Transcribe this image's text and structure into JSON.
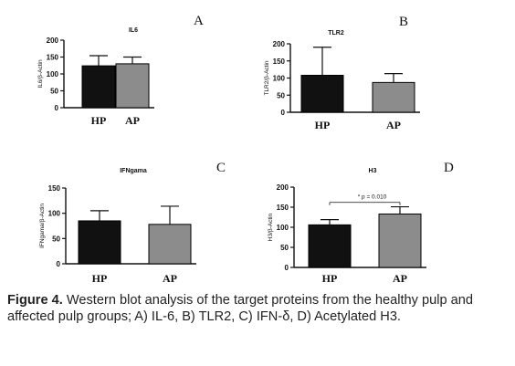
{
  "chart_data": [
    {
      "type": "bar",
      "panel_letter": "A",
      "title": "IL6",
      "ylabel": "IL6/β-Actin",
      "categories": [
        "HP",
        "AP"
      ],
      "values": [
        124,
        130
      ],
      "errors": [
        30,
        20
      ],
      "colors": [
        "#111111",
        "#8c8c8c"
      ],
      "ylim": [
        0,
        200
      ],
      "yticks": [
        "0",
        "50",
        "100",
        "150",
        "200"
      ],
      "annotation": ""
    },
    {
      "type": "bar",
      "panel_letter": "B",
      "title": "TLR2",
      "ylabel": "TLR2/β-Actin",
      "categories": [
        "HP",
        "AP"
      ],
      "values": [
        108,
        87
      ],
      "errors": [
        82,
        26
      ],
      "colors": [
        "#111111",
        "#8c8c8c"
      ],
      "ylim": [
        0,
        200
      ],
      "yticks": [
        "0",
        "50",
        "100",
        "150",
        "200"
      ],
      "annotation": ""
    },
    {
      "type": "bar",
      "panel_letter": "C",
      "title": "IFNgama",
      "ylabel": "IFNgama/β-Actin",
      "categories": [
        "HP",
        "AP"
      ],
      "values": [
        85,
        78
      ],
      "errors": [
        20,
        36
      ],
      "colors": [
        "#111111",
        "#8c8c8c"
      ],
      "ylim": [
        0,
        150
      ],
      "yticks": [
        "0",
        "50",
        "100",
        "150"
      ],
      "annotation": ""
    },
    {
      "type": "bar",
      "panel_letter": "D",
      "title": "H3",
      "ylabel": "H3/β-Actin",
      "categories": [
        "HP",
        "AP"
      ],
      "values": [
        106,
        133
      ],
      "errors": [
        13,
        18
      ],
      "colors": [
        "#111111",
        "#8c8c8c"
      ],
      "ylim": [
        0,
        200
      ],
      "yticks": [
        "0",
        "50",
        "100",
        "150",
        "200"
      ],
      "annotation": "* p = 0.010"
    }
  ],
  "caption": {
    "label": "Figure 4.",
    "text": " Western blot analysis of the target proteins from the healthy pulp and affected pulp groups; A) IL-6, B) TLR2, C) IFN-δ, D) Acetylated H3."
  }
}
